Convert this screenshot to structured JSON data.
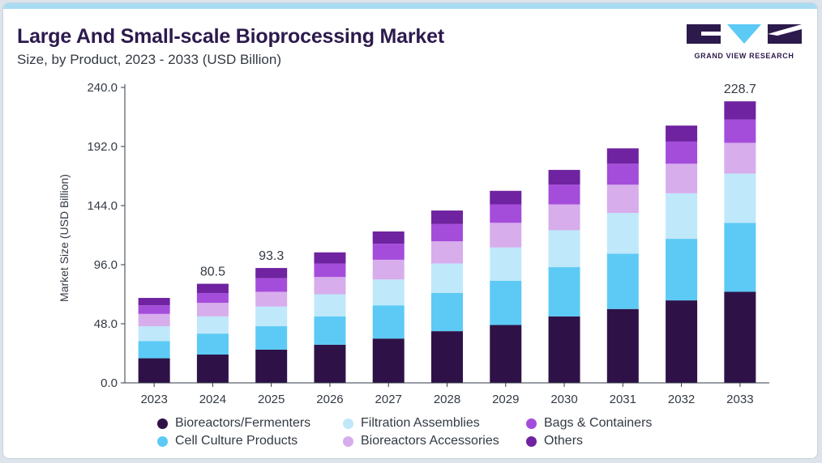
{
  "header": {
    "title": "Large And Small-scale Bioprocessing Market",
    "subtitle": "Size, by Product, 2023 - 2033 (USD Billion)"
  },
  "brand": {
    "name": "GRAND VIEW RESEARCH",
    "colors": {
      "dark": "#2c1a4d",
      "accent": "#a9dcf3"
    }
  },
  "chart_data": {
    "type": "bar",
    "stacked": true,
    "title": "Large And Small-scale Bioprocessing Market",
    "subtitle": "Size, by Product, 2023 - 2033 (USD Billion)",
    "xlabel": "",
    "ylabel": "Market Size (USD Billion)",
    "ylim": [
      0,
      240
    ],
    "yticks": [
      "0.0",
      "48.0",
      "96.0",
      "144.0",
      "192.0",
      "240.0"
    ],
    "categories": [
      "2023",
      "2024",
      "2025",
      "2026",
      "2027",
      "2028",
      "2029",
      "2030",
      "2031",
      "2032",
      "2033"
    ],
    "series": [
      {
        "name": "Bioreactors/Fermenters",
        "color": "#2e1247",
        "values": [
          20,
          23,
          27,
          31,
          36,
          42,
          47,
          54,
          60,
          67,
          74
        ]
      },
      {
        "name": "Cell Culture Products",
        "color": "#5ccaf5",
        "values": [
          14,
          17,
          19,
          23,
          27,
          31,
          36,
          40,
          45,
          50,
          56
        ]
      },
      {
        "name": "Filtration Assemblies",
        "color": "#bfe8fb",
        "values": [
          12,
          14,
          16,
          18,
          21,
          24,
          27,
          30,
          33,
          37,
          40
        ]
      },
      {
        "name": "Bioreactors Accessories",
        "color": "#d7adec",
        "values": [
          10,
          11,
          12,
          14,
          16,
          18,
          20,
          21,
          23,
          24,
          25
        ]
      },
      {
        "name": "Bags & Containers",
        "color": "#a54ddb",
        "values": [
          7,
          8,
          11,
          11,
          13,
          14,
          15,
          16,
          17,
          18,
          19
        ]
      },
      {
        "name": "Others",
        "color": "#6f23a0",
        "values": [
          6,
          7.5,
          8.3,
          9,
          10,
          11,
          11,
          12,
          12.5,
          13,
          14.7
        ]
      }
    ],
    "totals": [
      {
        "index": 1,
        "label": "80.5"
      },
      {
        "index": 2,
        "label": "93.3"
      },
      {
        "index": 10,
        "label": "228.7"
      }
    ],
    "legend": {
      "placement": "bottom",
      "items": [
        {
          "name": "Bioreactors/Fermenters",
          "color": "#2e1247"
        },
        {
          "name": "Filtration Assemblies",
          "color": "#bfe8fb"
        },
        {
          "name": "Bags & Containers",
          "color": "#a54ddb"
        },
        {
          "name": "Cell Culture Products",
          "color": "#5ccaf5"
        },
        {
          "name": "Bioreactors Accessories",
          "color": "#d7adec"
        },
        {
          "name": "Others",
          "color": "#6f23a0"
        }
      ]
    },
    "grid": false
  }
}
